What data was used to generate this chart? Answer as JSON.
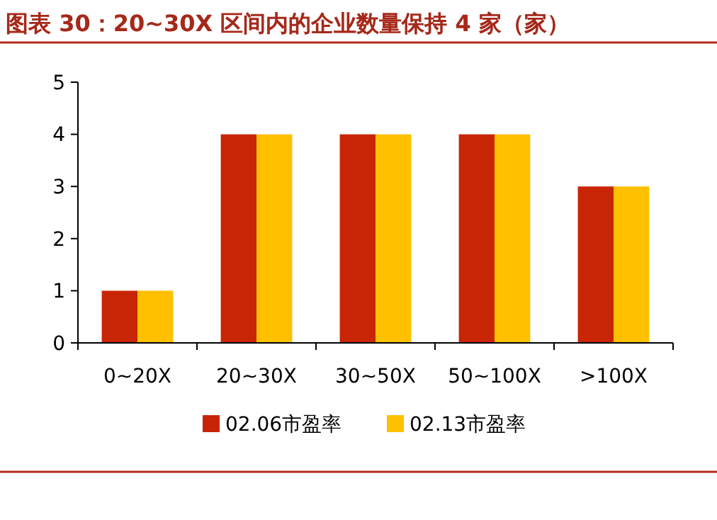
{
  "chart_data": {
    "type": "bar",
    "title": "图表 30：20~30X 区间内的企业数量保持 4 家（家）",
    "categories": [
      "0~20X",
      "20~30X",
      "30~50X",
      "50~100X",
      ">100X"
    ],
    "series": [
      {
        "name": "02.06市盈率",
        "color": "#c82506",
        "values": [
          1,
          4,
          4,
          4,
          3
        ]
      },
      {
        "name": "02.13市盈率",
        "color": "#ffc000",
        "values": [
          1,
          4,
          4,
          4,
          3
        ]
      }
    ],
    "ylim": [
      0,
      5
    ],
    "yticks": [
      0,
      1,
      2,
      3,
      4,
      5
    ],
    "grid": false,
    "legend": "bottom"
  }
}
